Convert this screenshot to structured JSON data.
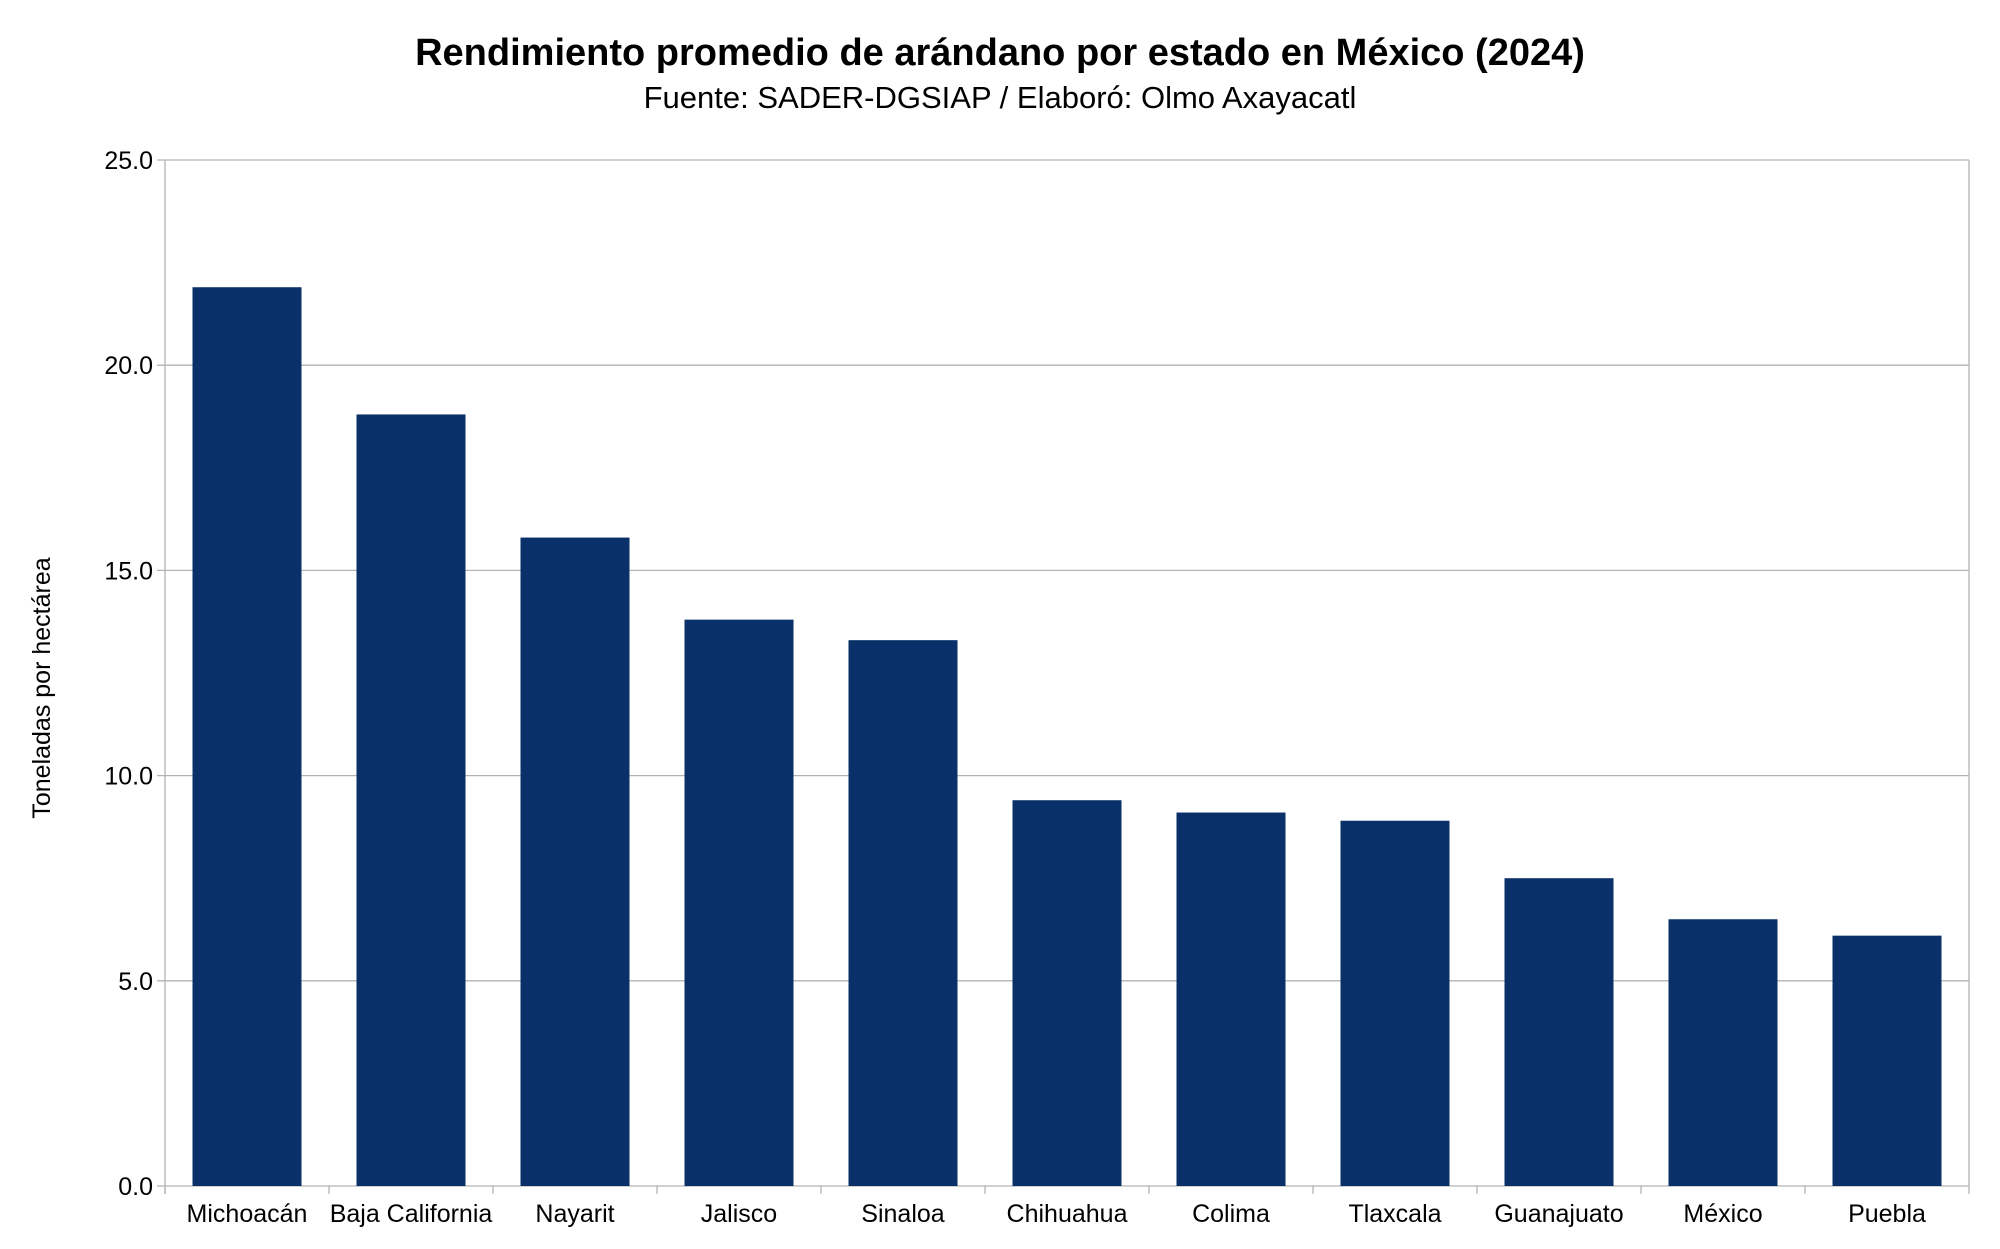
{
  "chart_data": {
    "type": "bar",
    "title": "Rendimiento promedio de arándano por estado en México (2024)",
    "subtitle": "Fuente: SADER-DGSIAP / Elaboró: Olmo Axayacatl",
    "xlabel": "",
    "ylabel": "Toneladas por hectárea",
    "ylim": [
      0,
      25
    ],
    "yticks": [
      "0.0",
      "5.0",
      "10.0",
      "15.0",
      "20.0",
      "25.0"
    ],
    "grid": true,
    "bar_color": "#0a3069",
    "categories": [
      "Michoacán",
      "Baja California",
      "Nayarit",
      "Jalisco",
      "Sinaloa",
      "Chihuahua",
      "Colima",
      "Tlaxcala",
      "Guanajuato",
      "México",
      "Puebla"
    ],
    "values": [
      21.9,
      18.8,
      15.8,
      13.8,
      13.3,
      9.4,
      9.1,
      8.9,
      7.5,
      6.5,
      6.1
    ]
  }
}
